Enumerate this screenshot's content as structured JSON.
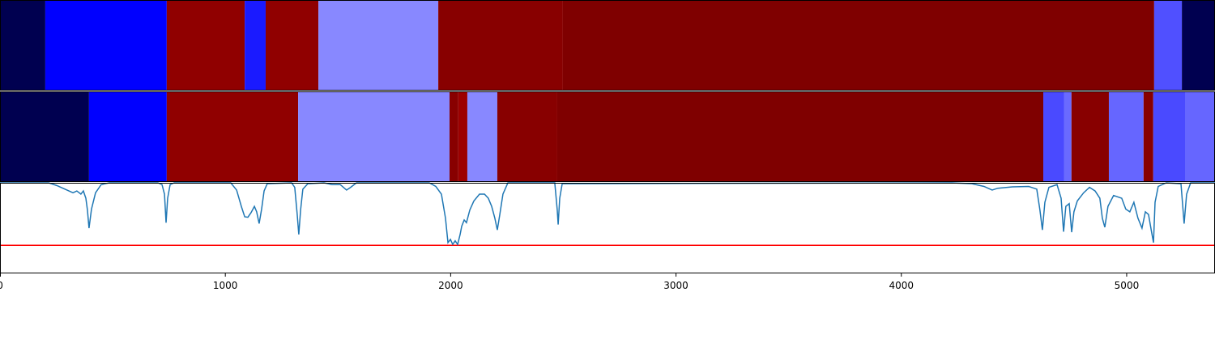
{
  "chart_data": [
    {
      "type": "segments",
      "xlim": [
        0,
        5392
      ],
      "segments": [
        {
          "start": 0,
          "end": 201,
          "color": "#000050"
        },
        {
          "start": 201,
          "end": 740,
          "color": "#0000ff"
        },
        {
          "start": 740,
          "end": 1086,
          "color": "#900000"
        },
        {
          "start": 1086,
          "end": 1179,
          "color": "#1a1aff"
        },
        {
          "start": 1179,
          "end": 1413,
          "color": "#900000"
        },
        {
          "start": 1413,
          "end": 1945,
          "color": "#8888ff"
        },
        {
          "start": 1945,
          "end": 2498,
          "color": "#880000"
        },
        {
          "start": 2498,
          "end": 5122,
          "color": "#7f0000"
        },
        {
          "start": 5122,
          "end": 5245,
          "color": "#5050ff"
        },
        {
          "start": 5245,
          "end": 5392,
          "color": "#000050"
        }
      ]
    },
    {
      "type": "segments",
      "xlim": [
        0,
        5392
      ],
      "segments": [
        {
          "start": 0,
          "end": 395,
          "color": "#000050"
        },
        {
          "start": 395,
          "end": 740,
          "color": "#0000ff"
        },
        {
          "start": 740,
          "end": 1323,
          "color": "#900000"
        },
        {
          "start": 1323,
          "end": 1995,
          "color": "#8888ff"
        },
        {
          "start": 1995,
          "end": 2034,
          "color": "#880000"
        },
        {
          "start": 2034,
          "end": 2074,
          "color": "#9c0000"
        },
        {
          "start": 2074,
          "end": 2207,
          "color": "#8888ff"
        },
        {
          "start": 2207,
          "end": 2473,
          "color": "#880000"
        },
        {
          "start": 2473,
          "end": 4630,
          "color": "#7f0000"
        },
        {
          "start": 4630,
          "end": 4723,
          "color": "#4a4aff"
        },
        {
          "start": 4723,
          "end": 4755,
          "color": "#6a6aff"
        },
        {
          "start": 4755,
          "end": 4921,
          "color": "#880000"
        },
        {
          "start": 4921,
          "end": 5075,
          "color": "#6666ff"
        },
        {
          "start": 5075,
          "end": 5118,
          "color": "#880000"
        },
        {
          "start": 5118,
          "end": 5259,
          "color": "#4a4aff"
        },
        {
          "start": 5259,
          "end": 5392,
          "color": "#6666ff"
        }
      ]
    },
    {
      "type": "line",
      "xlim": [
        0,
        5392
      ],
      "ylim": [
        0,
        1
      ],
      "xticks": [
        0,
        1000,
        2000,
        3000,
        4000,
        5000
      ],
      "color": "#1f77b4",
      "hline": 0.31,
      "hline_color": "#ff0000",
      "x": [
        0,
        216,
        252,
        288,
        324,
        341,
        359,
        370,
        381,
        388,
        395,
        406,
        424,
        449,
        485,
        701,
        719,
        730,
        737,
        744,
        755,
        773,
        1024,
        1050,
        1071,
        1086,
        1100,
        1114,
        1129,
        1139,
        1150,
        1161,
        1172,
        1186,
        1294,
        1308,
        1319,
        1326,
        1334,
        1344,
        1366,
        1438,
        1474,
        1510,
        1538,
        1556,
        1582,
        1905,
        1934,
        1959,
        1977,
        1988,
        1999,
        2009,
        2020,
        2031,
        2042,
        2049,
        2060,
        2070,
        2085,
        2103,
        2128,
        2150,
        2167,
        2182,
        2196,
        2207,
        2218,
        2232,
        2254,
        2462,
        2473,
        2477,
        2484,
        2495,
        4224,
        4313,
        4367,
        4403,
        4428,
        4493,
        4565,
        4601,
        4615,
        4626,
        4637,
        4655,
        4691,
        4709,
        4720,
        4730,
        4745,
        4756,
        4766,
        4781,
        4809,
        4835,
        4860,
        4881,
        4892,
        4903,
        4917,
        4942,
        4978,
        4996,
        5014,
        5032,
        5050,
        5068,
        5083,
        5097,
        5111,
        5119,
        5126,
        5140,
        5176,
        5241,
        5255,
        5266,
        5284,
        5392
      ],
      "values": [
        1.0,
        1.0,
        0.97,
        0.93,
        0.89,
        0.91,
        0.875,
        0.91,
        0.83,
        0.7,
        0.5,
        0.71,
        0.89,
        0.98,
        1.0,
        1.0,
        0.98,
        0.875,
        0.56,
        0.83,
        0.98,
        1.0,
        1.0,
        0.92,
        0.74,
        0.625,
        0.62,
        0.67,
        0.74,
        0.68,
        0.55,
        0.71,
        0.91,
        0.99,
        1.0,
        0.95,
        0.65,
        0.43,
        0.7,
        0.93,
        0.99,
        1.0,
        0.98,
        0.98,
        0.92,
        0.95,
        1.0,
        1.0,
        0.96,
        0.875,
        0.61,
        0.34,
        0.375,
        0.32,
        0.36,
        0.32,
        0.43,
        0.52,
        0.59,
        0.56,
        0.7,
        0.8,
        0.875,
        0.875,
        0.83,
        0.74,
        0.61,
        0.48,
        0.65,
        0.875,
        1.0,
        1.0,
        0.7,
        0.54,
        0.83,
        0.99,
        1.0,
        0.99,
        0.96,
        0.92,
        0.94,
        0.955,
        0.96,
        0.93,
        0.7,
        0.48,
        0.785,
        0.95,
        0.98,
        0.83,
        0.46,
        0.74,
        0.77,
        0.455,
        0.68,
        0.8,
        0.89,
        0.95,
        0.91,
        0.83,
        0.61,
        0.51,
        0.74,
        0.86,
        0.83,
        0.71,
        0.68,
        0.785,
        0.61,
        0.5,
        0.68,
        0.65,
        0.45,
        0.34,
        0.785,
        0.96,
        1.0,
        0.99,
        0.55,
        0.875,
        1.0,
        1.0
      ]
    }
  ]
}
